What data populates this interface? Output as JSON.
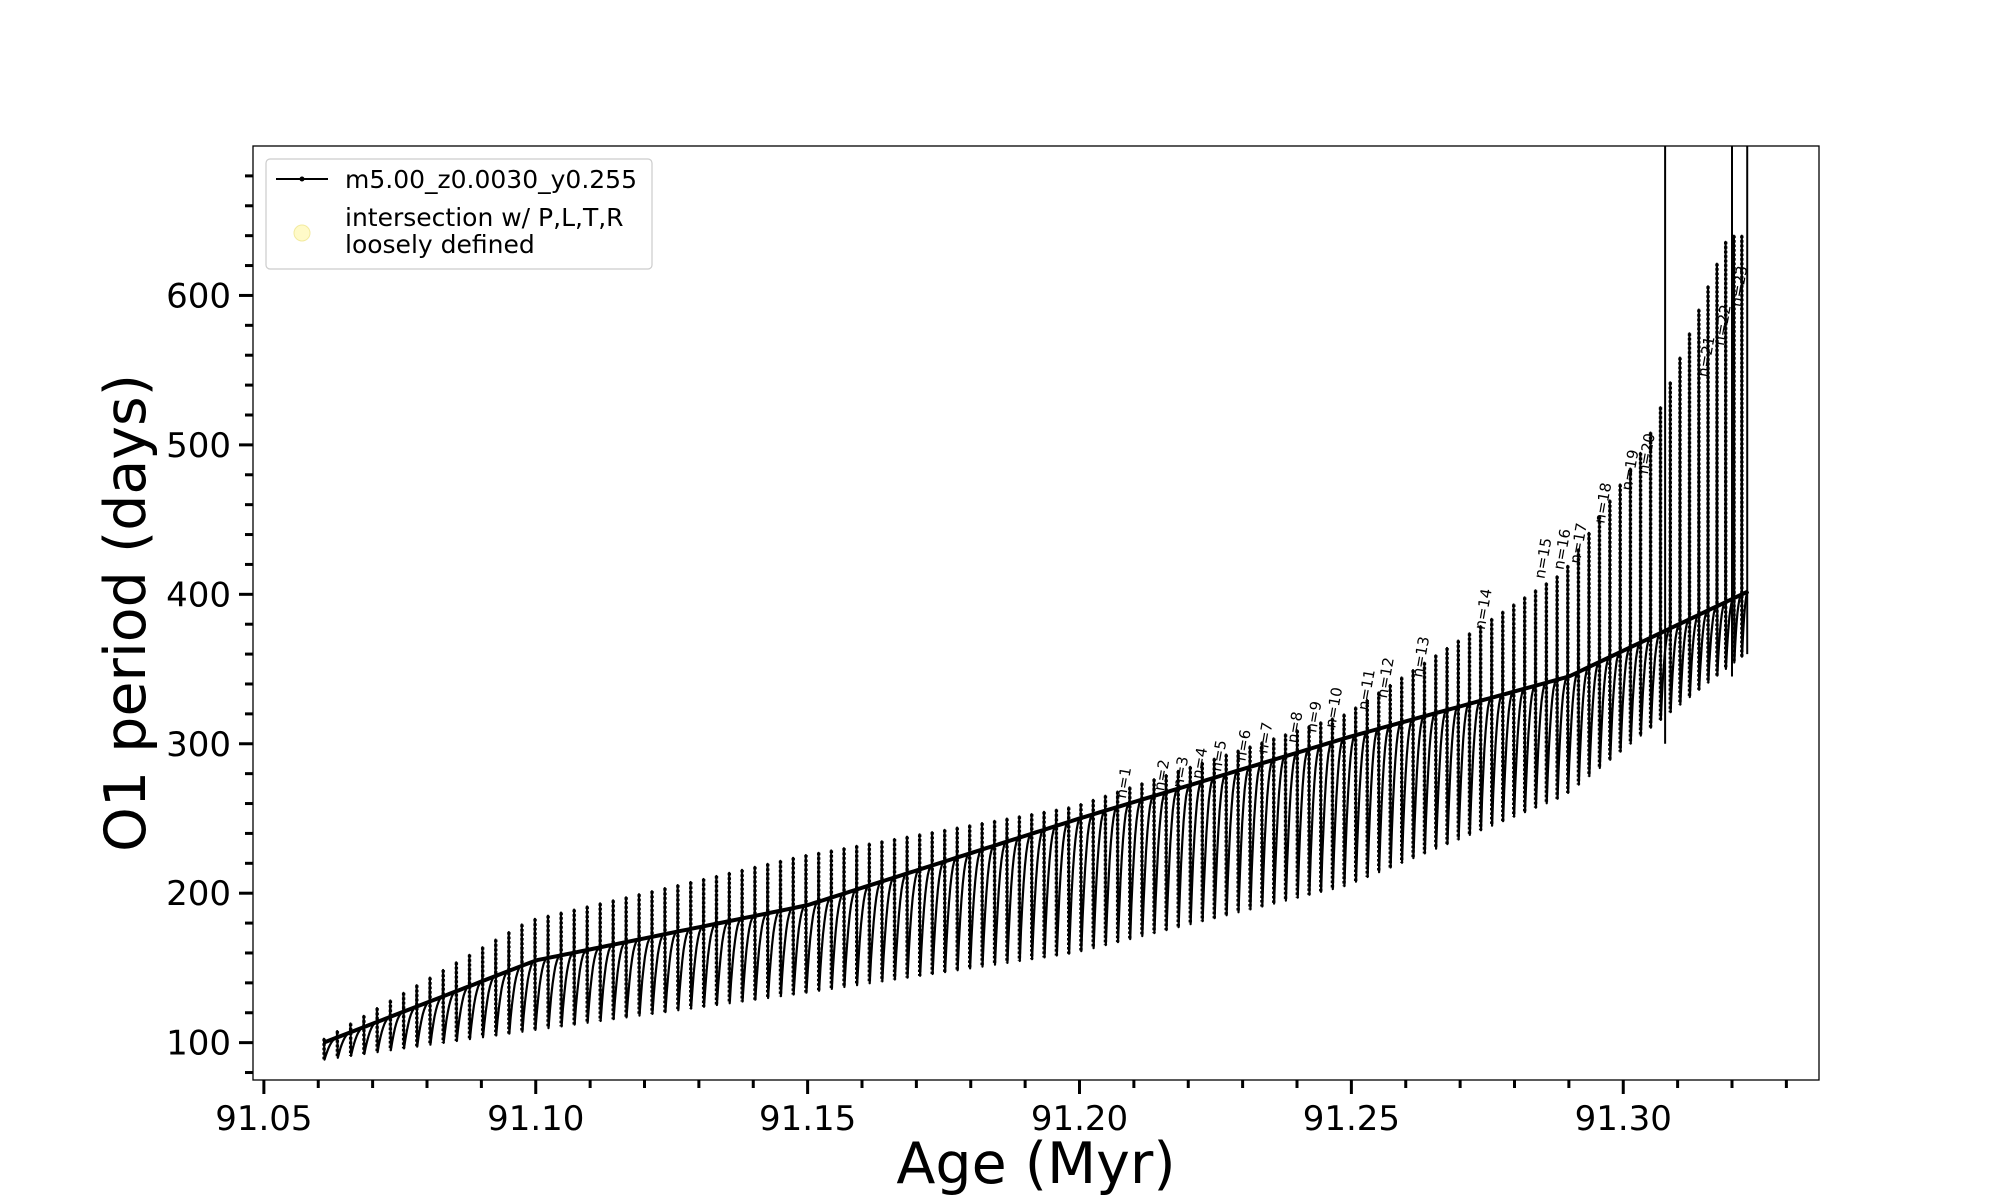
{
  "chart_data": {
    "type": "line",
    "title": "",
    "xlabel": "Age (Myr)",
    "ylabel": "O1 period (days)",
    "xlim": [
      91.048,
      91.336
    ],
    "ylim": [
      75,
      700
    ],
    "grid": false,
    "legend_position": "top-left",
    "x_ticks": [
      {
        "value": 91.05,
        "label": "91.05"
      },
      {
        "value": 91.1,
        "label": "91.10"
      },
      {
        "value": 91.15,
        "label": "91.15"
      },
      {
        "value": 91.2,
        "label": "91.20"
      },
      {
        "value": 91.25,
        "label": "91.25"
      },
      {
        "value": 91.3,
        "label": "91.30"
      }
    ],
    "y_ticks": [
      {
        "value": 100,
        "label": "100"
      },
      {
        "value": 200,
        "label": "200"
      },
      {
        "value": 300,
        "label": "300"
      },
      {
        "value": 400,
        "label": "400"
      },
      {
        "value": 500,
        "label": "500"
      },
      {
        "value": 600,
        "label": "600"
      }
    ],
    "series": [
      {
        "name": "m5.00_z0.0030_y0.255",
        "color": "#000000",
        "description_type": "sawtooth thermal pulses",
        "age_start": 91.061,
        "age_end": 91.323,
        "pulse_count": 120,
        "baseline_period": [
          [
            91.061,
            100
          ],
          [
            91.1,
            155
          ],
          [
            91.15,
            192
          ],
          [
            91.2,
            250
          ],
          [
            91.25,
            305
          ],
          [
            91.29,
            345
          ],
          [
            91.323,
            402
          ]
        ],
        "pulse_peak": [
          [
            91.061,
            100
          ],
          [
            91.1,
            182
          ],
          [
            91.15,
            225
          ],
          [
            91.2,
            258
          ],
          [
            91.25,
            320
          ],
          [
            91.29,
            415
          ],
          [
            91.305,
            500
          ],
          [
            91.32,
            640
          ]
        ],
        "pulse_trough": [
          [
            91.061,
            88
          ],
          [
            91.1,
            108
          ],
          [
            91.15,
            133
          ],
          [
            91.2,
            160
          ],
          [
            91.25,
            205
          ],
          [
            91.29,
            265
          ],
          [
            91.323,
            360
          ]
        ]
      },
      {
        "name": "intersection w/ P,L,T,R\nloosely defined",
        "color": "#fffac8",
        "marker": "circle",
        "points": []
      }
    ],
    "divergent_spikes": [
      {
        "x": 91.3077,
        "y_from": 300,
        "y_to": 700
      },
      {
        "x": 91.32,
        "y_from": 345,
        "y_to": 700
      },
      {
        "x": 91.3228,
        "y_from": 360,
        "y_to": 700
      }
    ],
    "annotations": [
      {
        "label": "n=1",
        "x": 91.2085,
        "y": 263
      },
      {
        "label": "n=2",
        "x": 91.2155,
        "y": 268
      },
      {
        "label": "n=3",
        "x": 91.219,
        "y": 270
      },
      {
        "label": "n=4",
        "x": 91.2225,
        "y": 276
      },
      {
        "label": "n=5",
        "x": 91.226,
        "y": 281
      },
      {
        "label": "n=6",
        "x": 91.2305,
        "y": 288
      },
      {
        "label": "n=7",
        "x": 91.2345,
        "y": 293
      },
      {
        "label": "n=8",
        "x": 91.24,
        "y": 300
      },
      {
        "label": "n=9",
        "x": 91.2435,
        "y": 307
      },
      {
        "label": "n=10",
        "x": 91.247,
        "y": 310
      },
      {
        "label": "n=11",
        "x": 91.253,
        "y": 322
      },
      {
        "label": "n=12",
        "x": 91.2565,
        "y": 330
      },
      {
        "label": "n=13",
        "x": 91.263,
        "y": 344
      },
      {
        "label": "n=14",
        "x": 91.2745,
        "y": 376
      },
      {
        "label": "n=15",
        "x": 91.2855,
        "y": 410
      },
      {
        "label": "n=16",
        "x": 91.289,
        "y": 416
      },
      {
        "label": "n=17",
        "x": 91.292,
        "y": 420
      },
      {
        "label": "n=18",
        "x": 91.2965,
        "y": 447
      },
      {
        "label": "n=19",
        "x": 91.3015,
        "y": 469
      },
      {
        "label": "n=20",
        "x": 91.3045,
        "y": 480
      },
      {
        "label": "n=21",
        "x": 91.3155,
        "y": 545
      },
      {
        "label": "n=22",
        "x": 91.3185,
        "y": 566
      },
      {
        "label": "n=23",
        "x": 91.3215,
        "y": 592
      }
    ]
  },
  "legend": {
    "entries": [
      {
        "label": "m5.00_z0.0030_y0.255",
        "icon": "line-with-dot-marker"
      },
      {
        "label_line1": "intersection w/ P,L,T,R",
        "label_line2": "loosely defined",
        "icon": "yellow-circle-marker"
      }
    ]
  }
}
